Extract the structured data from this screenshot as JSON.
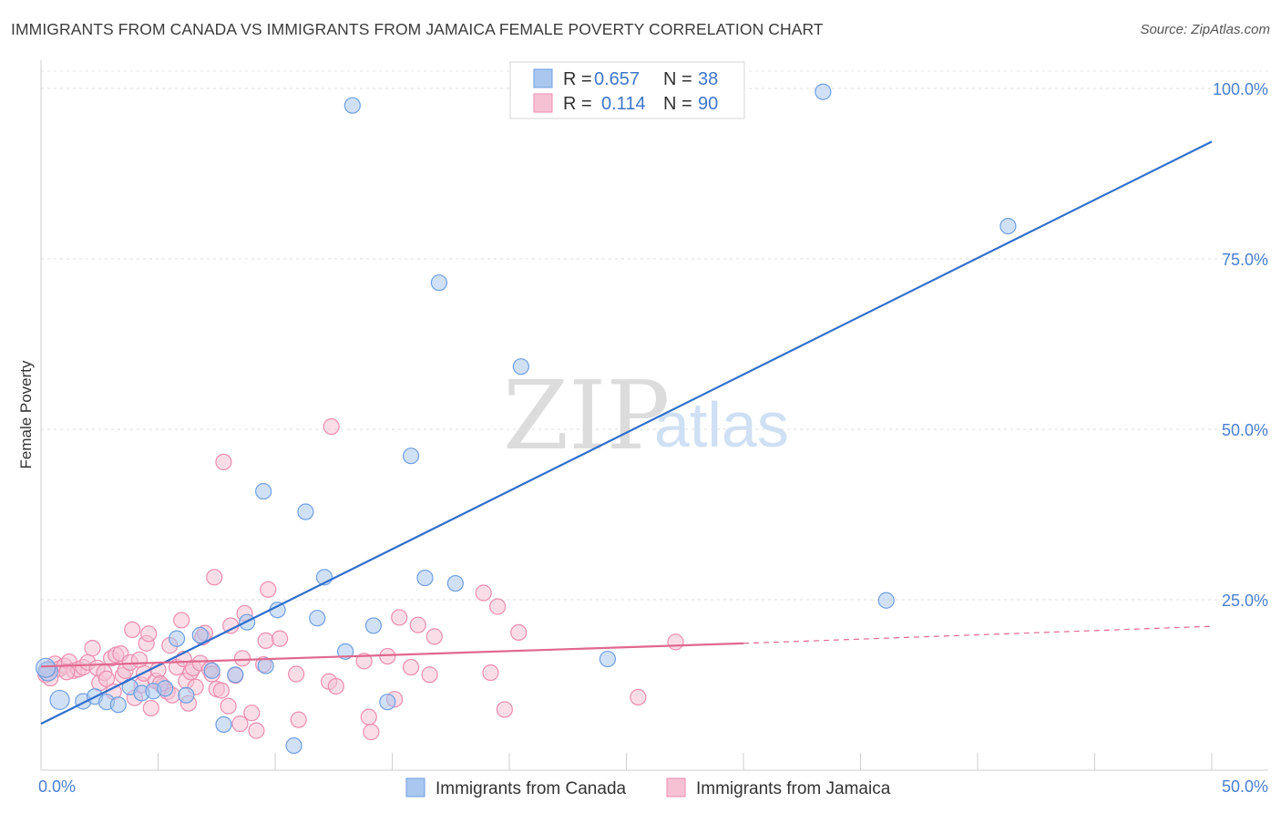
{
  "header": {
    "title": "IMMIGRANTS FROM CANADA VS IMMIGRANTS FROM JAMAICA FEMALE POVERTY CORRELATION CHART",
    "source": "Source: ZipAtlas.com"
  },
  "watermark": {
    "zip": "ZIP",
    "atlas": "atlas"
  },
  "chart_data": {
    "type": "scatter",
    "title": "IMMIGRANTS FROM CANADA VS IMMIGRANTS FROM JAMAICA FEMALE POVERTY CORRELATION CHART",
    "xlabel": "",
    "ylabel": "Female Poverty",
    "xlim": [
      0,
      50
    ],
    "ylim": [
      0,
      100
    ],
    "x_ticks": [
      0,
      50
    ],
    "x_tick_labels": [
      "0.0%",
      "50.0%"
    ],
    "y_ticks": [
      25,
      50,
      75,
      100
    ],
    "y_tick_labels": [
      "25.0%",
      "50.0%",
      "75.0%",
      "100.0%"
    ],
    "legend_items": [
      {
        "r_label": "R =",
        "r_value": "0.657",
        "n_label": "N =",
        "n_value": "38"
      },
      {
        "r_label": "R =",
        "r_value": "0.114",
        "n_label": "N =",
        "n_value": "90"
      }
    ],
    "series": [
      {
        "name": "Immigrants from Canada",
        "color": "#6f9fe0",
        "fill": "#a9c7ef",
        "line_color": "#2f6fcc",
        "trend": {
          "x0": 0,
          "y0": 6.8,
          "x1": 50,
          "y1": 92.2
        },
        "points": [
          [
            0.3,
            14.5
          ],
          [
            0.8,
            10.3
          ],
          [
            1.8,
            10.1
          ],
          [
            2.3,
            10.8
          ],
          [
            2.8,
            10.0
          ],
          [
            3.3,
            9.6
          ],
          [
            3.8,
            12.2
          ],
          [
            4.3,
            11.3
          ],
          [
            4.8,
            11.6
          ],
          [
            5.3,
            12.0
          ],
          [
            5.8,
            19.3
          ],
          [
            6.2,
            11.0
          ],
          [
            6.8,
            19.8
          ],
          [
            7.3,
            14.6
          ],
          [
            7.8,
            6.7
          ],
          [
            8.3,
            14.0
          ],
          [
            8.8,
            21.7
          ],
          [
            9.5,
            40.9
          ],
          [
            9.6,
            15.3
          ],
          [
            10.1,
            23.5
          ],
          [
            10.8,
            3.6
          ],
          [
            11.3,
            37.9
          ],
          [
            11.8,
            22.3
          ],
          [
            12.1,
            28.3
          ],
          [
            13.0,
            17.4
          ],
          [
            13.3,
            97.5
          ],
          [
            14.2,
            21.2
          ],
          [
            14.8,
            10.0
          ],
          [
            15.8,
            46.1
          ],
          [
            16.4,
            28.2
          ],
          [
            17.0,
            71.5
          ],
          [
            17.7,
            27.4
          ],
          [
            20.5,
            59.2
          ],
          [
            24.2,
            16.3
          ],
          [
            33.4,
            99.5
          ],
          [
            36.1,
            24.9
          ],
          [
            41.3,
            79.8
          ],
          [
            0.2,
            15.0
          ]
        ]
      },
      {
        "name": "Immigrants from Jamaica",
        "color": "#ec8db0",
        "fill": "#f6c1d3",
        "line_color": "#e0688f",
        "trend": {
          "x0": 0,
          "y0": 15.2,
          "x1": 30,
          "y1": 18.6
        },
        "trend_dashed": {
          "x0": 30,
          "y0": 18.6,
          "x1": 50,
          "y1": 21.1
        },
        "points": [
          [
            0.2,
            14.0
          ],
          [
            0.4,
            13.5
          ],
          [
            0.6,
            15.6
          ],
          [
            0.8,
            14.9
          ],
          [
            1.0,
            15.3
          ],
          [
            1.2,
            15.9
          ],
          [
            1.4,
            14.6
          ],
          [
            1.6,
            14.8
          ],
          [
            1.8,
            15.1
          ],
          [
            2.0,
            15.8
          ],
          [
            2.2,
            17.9
          ],
          [
            2.4,
            15.0
          ],
          [
            2.5,
            12.8
          ],
          [
            2.7,
            14.3
          ],
          [
            2.8,
            13.4
          ],
          [
            3.0,
            16.4
          ],
          [
            3.1,
            11.5
          ],
          [
            3.2,
            16.9
          ],
          [
            3.4,
            17.1
          ],
          [
            3.5,
            13.9
          ],
          [
            3.6,
            14.6
          ],
          [
            3.8,
            15.8
          ],
          [
            3.9,
            20.6
          ],
          [
            4.0,
            10.6
          ],
          [
            4.2,
            16.2
          ],
          [
            4.3,
            12.5
          ],
          [
            4.4,
            14.2
          ],
          [
            4.5,
            18.6
          ],
          [
            4.6,
            20.0
          ],
          [
            4.7,
            9.1
          ],
          [
            4.9,
            13.1
          ],
          [
            5.0,
            14.7
          ],
          [
            5.2,
            12.3
          ],
          [
            5.4,
            11.5
          ],
          [
            5.5,
            18.3
          ],
          [
            5.6,
            11.0
          ],
          [
            5.8,
            15.1
          ],
          [
            6.0,
            22.0
          ],
          [
            6.1,
            16.3
          ],
          [
            6.2,
            13.1
          ],
          [
            6.4,
            14.4
          ],
          [
            6.5,
            15.0
          ],
          [
            6.6,
            12.2
          ],
          [
            6.8,
            15.7
          ],
          [
            6.9,
            19.5
          ],
          [
            7.0,
            20.1
          ],
          [
            7.2,
            14.8
          ],
          [
            7.3,
            14.1
          ],
          [
            7.4,
            28.3
          ],
          [
            7.5,
            11.9
          ],
          [
            7.7,
            11.7
          ],
          [
            7.8,
            45.2
          ],
          [
            8.0,
            9.4
          ],
          [
            8.1,
            21.2
          ],
          [
            8.3,
            13.9
          ],
          [
            8.5,
            6.8
          ],
          [
            8.6,
            16.4
          ],
          [
            8.7,
            23.0
          ],
          [
            9.0,
            8.4
          ],
          [
            9.2,
            5.8
          ],
          [
            9.5,
            15.5
          ],
          [
            9.6,
            19.0
          ],
          [
            9.7,
            26.5
          ],
          [
            10.2,
            19.3
          ],
          [
            10.9,
            14.1
          ],
          [
            11.0,
            7.4
          ],
          [
            12.3,
            13.0
          ],
          [
            12.4,
            50.4
          ],
          [
            12.6,
            12.3
          ],
          [
            13.8,
            16.0
          ],
          [
            14.0,
            7.8
          ],
          [
            14.1,
            5.6
          ],
          [
            14.8,
            16.7
          ],
          [
            15.1,
            10.4
          ],
          [
            15.3,
            22.4
          ],
          [
            15.8,
            15.1
          ],
          [
            16.1,
            21.3
          ],
          [
            16.6,
            14.0
          ],
          [
            16.8,
            19.6
          ],
          [
            18.9,
            26.0
          ],
          [
            19.2,
            14.3
          ],
          [
            19.5,
            24.0
          ],
          [
            19.8,
            8.9
          ],
          [
            20.4,
            20.2
          ],
          [
            25.5,
            10.7
          ],
          [
            27.1,
            18.8
          ],
          [
            0.3,
            14.8
          ],
          [
            1.1,
            14.4
          ],
          [
            5.1,
            12.7
          ],
          [
            6.3,
            9.8
          ]
        ]
      }
    ]
  }
}
